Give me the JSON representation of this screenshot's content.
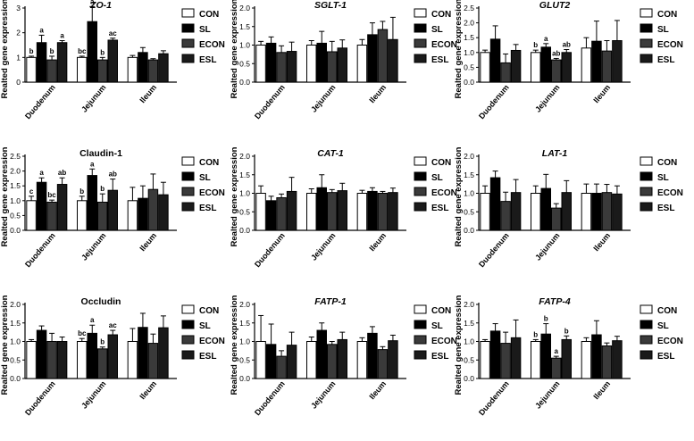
{
  "series_names": [
    "CON",
    "SL",
    "ECON",
    "ESL"
  ],
  "colors": {
    "CON": "#ffffff",
    "SL": "#000000",
    "ECON": "#3a3a3a",
    "ESL": "#1a1a1a",
    "axis": "#000000"
  },
  "chart_data": [
    {
      "type": "bar",
      "title": "ZO-1",
      "italic": true,
      "categories": [
        "Duodenum",
        "Jejunum",
        "Ileum"
      ],
      "ylabel": "Realted gene expression",
      "ylim": [
        0,
        3
      ],
      "yticks": [
        "0",
        "1",
        "2",
        "3"
      ],
      "series": [
        {
          "name": "CON",
          "values": [
            1.0,
            1.0,
            1.0
          ],
          "errors": [
            0.05,
            0.05,
            0.08
          ],
          "labels": [
            "b",
            "bc",
            ""
          ]
        },
        {
          "name": "SL",
          "values": [
            1.6,
            2.45,
            1.2
          ],
          "errors": [
            0.3,
            0.65,
            0.2
          ],
          "labels": [
            "a",
            "a",
            ""
          ]
        },
        {
          "name": "ECON",
          "values": [
            0.9,
            0.9,
            0.9
          ],
          "errors": [
            0.15,
            0.1,
            0.05
          ],
          "labels": [
            "b",
            "b",
            ""
          ]
        },
        {
          "name": "ESL",
          "values": [
            1.6,
            1.7,
            1.15
          ],
          "errors": [
            0.08,
            0.08,
            0.12
          ],
          "labels": [
            "a",
            "ac",
            ""
          ]
        }
      ]
    },
    {
      "type": "bar",
      "title": "SGLT-1",
      "italic": true,
      "categories": [
        "Duodenum",
        "Jejunum",
        "Ileum"
      ],
      "ylabel": "Realted gene expression",
      "ylim": [
        0,
        2
      ],
      "yticks": [
        "0.0",
        "0.5",
        "1.0",
        "1.5",
        "2.0"
      ],
      "series": [
        {
          "name": "CON",
          "values": [
            1.0,
            1.0,
            1.0
          ],
          "errors": [
            0.1,
            0.12,
            0.15
          ],
          "labels": [
            "",
            "",
            ""
          ]
        },
        {
          "name": "SL",
          "values": [
            1.05,
            1.05,
            1.28
          ],
          "errors": [
            0.17,
            0.32,
            0.32
          ],
          "labels": [
            "",
            "",
            ""
          ]
        },
        {
          "name": "ECON",
          "values": [
            0.8,
            0.82,
            1.42
          ],
          "errors": [
            0.18,
            0.28,
            0.22
          ],
          "labels": [
            "",
            "",
            ""
          ]
        },
        {
          "name": "ESL",
          "values": [
            0.83,
            0.92,
            1.15
          ],
          "errors": [
            0.25,
            0.22,
            0.6
          ],
          "labels": [
            "",
            "",
            ""
          ]
        }
      ]
    },
    {
      "type": "bar",
      "title": "GLUT2",
      "italic": true,
      "categories": [
        "Duodenum",
        "Jejunum",
        "Ileum"
      ],
      "ylabel": "Realted gene expression",
      "ylim": [
        0,
        2.5
      ],
      "yticks": [
        "0.0",
        "0.5",
        "1.0",
        "1.5",
        "2.0",
        "2.5"
      ],
      "series": [
        {
          "name": "CON",
          "values": [
            1.0,
            1.0,
            1.15
          ],
          "errors": [
            0.08,
            0.08,
            0.35
          ],
          "labels": [
            "",
            "b",
            ""
          ]
        },
        {
          "name": "SL",
          "values": [
            1.45,
            1.18,
            1.38
          ],
          "errors": [
            0.45,
            0.12,
            0.68
          ],
          "labels": [
            "",
            "a",
            ""
          ]
        },
        {
          "name": "ECON",
          "values": [
            0.65,
            0.75,
            1.05
          ],
          "errors": [
            0.3,
            0.05,
            0.35
          ],
          "labels": [
            "",
            "ab",
            ""
          ]
        },
        {
          "name": "ESL",
          "values": [
            1.07,
            1.0,
            1.4
          ],
          "errors": [
            0.2,
            0.1,
            0.68
          ],
          "labels": [
            "",
            "ab",
            ""
          ]
        }
      ]
    },
    {
      "type": "bar",
      "title": "Claudin-1",
      "italic": false,
      "categories": [
        "Duodenum",
        "Jejunum",
        "Ileum"
      ],
      "ylabel": "Realted gene expression",
      "ylim": [
        0,
        2.5
      ],
      "yticks": [
        "0.0",
        "0.5",
        "1.0",
        "1.5",
        "2.0",
        "2.5"
      ],
      "series": [
        {
          "name": "CON",
          "values": [
            1.0,
            1.0,
            1.0
          ],
          "errors": [
            0.15,
            0.15,
            0.45
          ],
          "labels": [
            "c",
            "b",
            ""
          ]
        },
        {
          "name": "SL",
          "values": [
            1.62,
            1.85,
            1.08
          ],
          "errors": [
            0.15,
            0.22,
            0.42
          ],
          "labels": [
            "a",
            "a",
            ""
          ]
        },
        {
          "name": "ECON",
          "values": [
            0.95,
            0.95,
            1.38
          ],
          "errors": [
            0.07,
            0.28,
            0.52
          ],
          "labels": [
            "bc",
            "b",
            ""
          ]
        },
        {
          "name": "ESL",
          "values": [
            1.55,
            1.35,
            1.2
          ],
          "errors": [
            0.22,
            0.38,
            0.42
          ],
          "labels": [
            "ab",
            "ab",
            ""
          ]
        }
      ]
    },
    {
      "type": "bar",
      "title": "CAT-1",
      "italic": true,
      "categories": [
        "Duodenum",
        "Jejunum",
        "Ileum"
      ],
      "ylabel": "Realted gene expression",
      "ylim": [
        0,
        2
      ],
      "yticks": [
        "0.0",
        "0.5",
        "1.0",
        "1.5",
        "2.0"
      ],
      "series": [
        {
          "name": "CON",
          "values": [
            1.0,
            1.0,
            1.0
          ],
          "errors": [
            0.2,
            0.12,
            0.08
          ],
          "labels": [
            "",
            "",
            ""
          ]
        },
        {
          "name": "SL",
          "values": [
            0.8,
            1.15,
            1.05
          ],
          "errors": [
            0.12,
            0.35,
            0.1
          ],
          "labels": [
            "",
            "",
            ""
          ]
        },
        {
          "name": "ECON",
          "values": [
            0.88,
            1.02,
            1.0
          ],
          "errors": [
            0.1,
            0.08,
            0.05
          ],
          "labels": [
            "",
            "",
            ""
          ]
        },
        {
          "name": "ESL",
          "values": [
            1.05,
            1.07,
            1.02
          ],
          "errors": [
            0.38,
            0.2,
            0.12
          ],
          "labels": [
            "",
            "",
            ""
          ]
        }
      ]
    },
    {
      "type": "bar",
      "title": "LAT-1",
      "italic": true,
      "categories": [
        "Duodenum",
        "Jejunum",
        "Ileum"
      ],
      "ylabel": "Realted gene expression",
      "ylim": [
        0,
        2
      ],
      "yticks": [
        "0.0",
        "0.5",
        "1.0",
        "1.5",
        "2.0"
      ],
      "series": [
        {
          "name": "CON",
          "values": [
            1.0,
            1.0,
            1.0
          ],
          "errors": [
            0.2,
            0.2,
            0.25
          ],
          "labels": [
            "",
            "",
            ""
          ]
        },
        {
          "name": "SL",
          "values": [
            1.42,
            1.13,
            1.0
          ],
          "errors": [
            0.18,
            0.38,
            0.25
          ],
          "labels": [
            "",
            "",
            ""
          ]
        },
        {
          "name": "ECON",
          "values": [
            0.78,
            0.6,
            1.02
          ],
          "errors": [
            0.25,
            0.12,
            0.22
          ],
          "labels": [
            "",
            "",
            ""
          ]
        },
        {
          "name": "ESL",
          "values": [
            1.02,
            1.02,
            0.98
          ],
          "errors": [
            0.35,
            0.32,
            0.22
          ],
          "labels": [
            "",
            "",
            ""
          ]
        }
      ]
    },
    {
      "type": "bar",
      "title": "Occludin",
      "italic": false,
      "categories": [
        "Duodenum",
        "Jejunum",
        "Ileum"
      ],
      "ylabel": "Realted gene expression",
      "ylim": [
        0,
        2
      ],
      "yticks": [
        "0.0",
        "0.5",
        "1.0",
        "1.5",
        "2.0"
      ],
      "series": [
        {
          "name": "CON",
          "values": [
            1.0,
            1.0,
            1.0
          ],
          "errors": [
            0.05,
            0.08,
            0.35
          ],
          "labels": [
            "",
            "bc",
            ""
          ]
        },
        {
          "name": "SL",
          "values": [
            1.3,
            1.22,
            1.38
          ],
          "errors": [
            0.12,
            0.22,
            0.38
          ],
          "labels": [
            "",
            "a",
            ""
          ]
        },
        {
          "name": "ECON",
          "values": [
            1.0,
            0.8,
            0.95
          ],
          "errors": [
            0.22,
            0.05,
            0.25
          ],
          "labels": [
            "",
            "b",
            ""
          ]
        },
        {
          "name": "ESL",
          "values": [
            1.0,
            1.18,
            1.37
          ],
          "errors": [
            0.12,
            0.12,
            0.32
          ],
          "labels": [
            "",
            "ac",
            ""
          ]
        }
      ]
    },
    {
      "type": "bar",
      "title": "FATP-1",
      "italic": true,
      "categories": [
        "Duodenum",
        "Jejunum",
        "Ileum"
      ],
      "ylabel": "Realted gene expression",
      "ylim": [
        0,
        2
      ],
      "yticks": [
        "0.0",
        "0.5",
        "1.0",
        "1.5",
        "2.0"
      ],
      "series": [
        {
          "name": "CON",
          "values": [
            1.0,
            1.0,
            1.0
          ],
          "errors": [
            0.7,
            0.12,
            0.1
          ],
          "labels": [
            "",
            "",
            ""
          ]
        },
        {
          "name": "SL",
          "values": [
            0.92,
            1.3,
            1.22
          ],
          "errors": [
            0.55,
            0.2,
            0.18
          ],
          "labels": [
            "",
            "",
            ""
          ]
        },
        {
          "name": "ECON",
          "values": [
            0.6,
            0.92,
            0.78
          ],
          "errors": [
            0.15,
            0.08,
            0.08
          ],
          "labels": [
            "",
            "",
            ""
          ]
        },
        {
          "name": "ESL",
          "values": [
            0.9,
            1.05,
            1.02
          ],
          "errors": [
            0.35,
            0.2,
            0.15
          ],
          "labels": [
            "",
            "",
            ""
          ]
        }
      ]
    },
    {
      "type": "bar",
      "title": "FATP-4",
      "italic": true,
      "categories": [
        "Duodenum",
        "Jejunum",
        "Ileum"
      ],
      "ylabel": "Realted gene expression",
      "ylim": [
        0,
        2
      ],
      "yticks": [
        "0.0",
        "0.5",
        "1.0",
        "1.5",
        "2.0"
      ],
      "series": [
        {
          "name": "CON",
          "values": [
            1.0,
            1.0,
            1.0
          ],
          "errors": [
            0.05,
            0.05,
            0.1
          ],
          "labels": [
            "",
            "b",
            ""
          ]
        },
        {
          "name": "SL",
          "values": [
            1.28,
            1.2,
            1.18
          ],
          "errors": [
            0.2,
            0.28,
            0.38
          ],
          "labels": [
            "",
            "b",
            ""
          ]
        },
        {
          "name": "ECON",
          "values": [
            0.95,
            0.55,
            0.88
          ],
          "errors": [
            0.3,
            0.05,
            0.08
          ],
          "labels": [
            "",
            "a",
            ""
          ]
        },
        {
          "name": "ESL",
          "values": [
            1.1,
            1.05,
            1.02
          ],
          "errors": [
            0.48,
            0.1,
            0.12
          ],
          "labels": [
            "",
            "b",
            ""
          ]
        }
      ]
    }
  ]
}
